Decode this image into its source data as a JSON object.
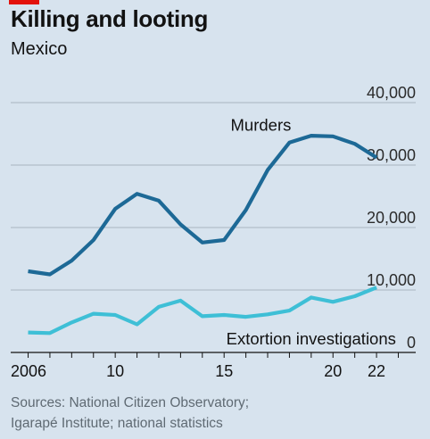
{
  "header": {
    "title": "Killing and looting",
    "subtitle": "Mexico"
  },
  "source_lines": [
    "Sources: National Citizen Observatory;",
    "Igarapé Institute; national statistics"
  ],
  "colors": {
    "background": "#d7e3ee",
    "murders": "#1d6996",
    "extortion": "#3ebfd6",
    "brand_tag": "#e3120b"
  },
  "chart_data": {
    "type": "line",
    "title": "Killing and looting",
    "subtitle": "Mexico",
    "xlabel": "",
    "ylabel": "",
    "x": [
      2006,
      2007,
      2008,
      2009,
      2010,
      2011,
      2012,
      2013,
      2014,
      2015,
      2016,
      2017,
      2018,
      2019,
      2020,
      2021,
      2022
    ],
    "x_tick_values": [
      2006,
      2010,
      2015,
      2020,
      2022
    ],
    "x_tick_labels": [
      "2006",
      "10",
      "15",
      "20",
      "22"
    ],
    "xlim": [
      2005.2,
      2023.8
    ],
    "y_tick_values": [
      0,
      10000,
      20000,
      30000,
      40000
    ],
    "y_tick_labels": [
      "0",
      "10,000",
      "20,000",
      "30,000",
      "40,000"
    ],
    "ylim": [
      0,
      40000
    ],
    "grid": true,
    "series": [
      {
        "name": "Murders",
        "color": "#1d6996",
        "values": [
          13000,
          12500,
          14700,
          18000,
          23000,
          25400,
          24300,
          20500,
          17600,
          18000,
          22800,
          29200,
          33600,
          34700,
          34600,
          33400,
          31200
        ]
      },
      {
        "name": "Extortion investigations",
        "color": "#3ebfd6",
        "values": [
          3200,
          3100,
          4800,
          6200,
          6000,
          4500,
          7300,
          8300,
          5800,
          6000,
          5700,
          6100,
          6700,
          8800,
          8100,
          9000,
          10400
        ]
      }
    ]
  }
}
